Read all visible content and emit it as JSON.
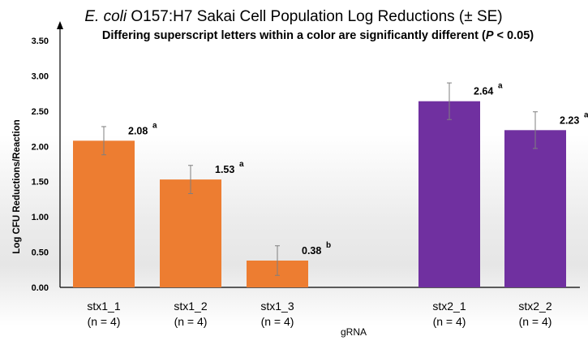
{
  "chart_data": {
    "type": "bar",
    "title_italic": "E. coli",
    "title_rest": " O157:H7 Sakai Cell Population Log Reductions (± SE)",
    "subtitle_pre": "Differing superscript letters within a color are significantly different (",
    "subtitle_italic": "P",
    "subtitle_post": " < 0.05)",
    "xlabel": "gRNA",
    "ylabel": "Log CFU Reductions/Reaction",
    "ylim": [
      0,
      3.5
    ],
    "yticks": [
      "0.00",
      "0.50",
      "1.00",
      "1.50",
      "2.00",
      "2.50",
      "3.00",
      "3.50"
    ],
    "grid": false,
    "colors": {
      "stx1": "#ed7d31",
      "stx2": "#7030a0"
    },
    "bars": [
      {
        "category": "stx1_1",
        "n_label": "(n = 4)",
        "value": 2.08,
        "se": 0.2,
        "label": "2.08",
        "letter": "a",
        "group": "stx1"
      },
      {
        "category": "stx1_2",
        "n_label": "(n = 4)",
        "value": 1.53,
        "se": 0.2,
        "label": "1.53",
        "letter": "a",
        "group": "stx1"
      },
      {
        "category": "stx1_3",
        "n_label": "(n = 4)",
        "value": 0.38,
        "se": 0.21,
        "label": "0.38",
        "letter": "b",
        "group": "stx1"
      },
      {
        "category": "stx2_1",
        "n_label": "(n = 4)",
        "value": 2.64,
        "se": 0.26,
        "label": "2.64",
        "letter": "a",
        "group": "stx2"
      },
      {
        "category": "stx2_2",
        "n_label": "(n = 4)",
        "value": 2.23,
        "se": 0.26,
        "label": "2.23",
        "letter": "a",
        "group": "stx2"
      }
    ]
  }
}
